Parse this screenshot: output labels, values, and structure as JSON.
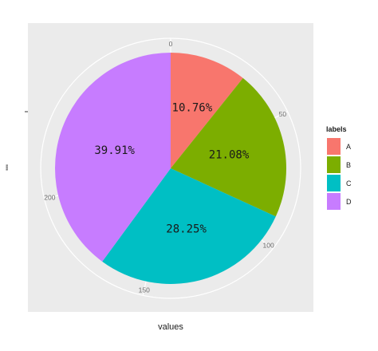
{
  "chart_data": {
    "type": "pie",
    "categories": [
      "A",
      "B",
      "C",
      "D"
    ],
    "values": [
      30.2,
      59.2,
      79.3,
      112.1
    ],
    "percent_labels": [
      "10.76%",
      "21.08%",
      "28.25%",
      "39.91%"
    ],
    "colors": [
      "#f8766d",
      "#7cae00",
      "#00bfc4",
      "#c77cff"
    ],
    "xlabel": "values",
    "ylabel": "\"\"",
    "legend_title": "labels",
    "legend_position": "right",
    "theta_ticks": [
      0,
      50,
      100,
      150,
      200
    ],
    "theta_tick_labels": [
      "0",
      "50",
      "100",
      "150",
      "200"
    ],
    "theta_range": [
      0,
      280.8
    ],
    "background_color": "#ebebeb",
    "grid": true
  }
}
